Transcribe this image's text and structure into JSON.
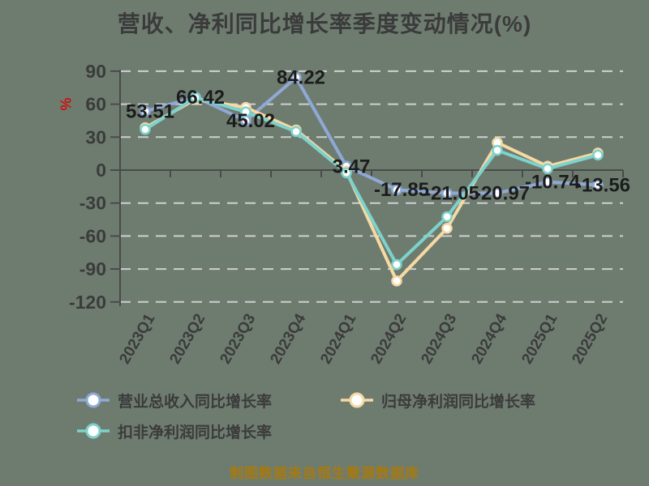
{
  "page": {
    "background": "#6e7c70"
  },
  "chart_data": {
    "type": "line",
    "title": "营收、净利同比增长率季度变动情况(%)",
    "unit_label": "%",
    "categories": [
      "2023Q1",
      "2023Q2",
      "2023Q3",
      "2023Q4",
      "2024Q1",
      "2024Q2",
      "2024Q3",
      "2024Q4",
      "2025Q1",
      "2025Q2"
    ],
    "yticks": [
      90,
      60,
      30,
      0,
      -30,
      -60,
      -90,
      -120
    ],
    "ylim": [
      -120,
      90
    ],
    "grid": "horizontal-dashed",
    "legend_position": "bottom-left",
    "series": [
      {
        "name": "营业总收入同比增长率",
        "color": "#8fa9d6",
        "labeled": true,
        "values": [
          53.51,
          66.42,
          45.02,
          84.22,
          3.47,
          -17.85,
          -21.05,
          -20.97,
          -10.74,
          -13.56
        ]
      },
      {
        "name": "归母净利润同比增长率",
        "color": "#f6d9a3",
        "labeled": false,
        "values": [
          38.5,
          64.5,
          57,
          36.5,
          -1,
          -100.9,
          -53,
          25,
          3.5,
          15.5
        ]
      },
      {
        "name": "扣非净利润同比增长率",
        "color": "#7dd2cb",
        "labeled": false,
        "values": [
          37,
          66,
          53,
          35,
          -2.5,
          -86,
          -42.5,
          18,
          1.3,
          13.7
        ]
      }
    ],
    "colors": {
      "axis": "#4a4a4a",
      "grid": "#d9d9d9",
      "tick_text": "#3b3b3b",
      "data_label": "#1c1c1c",
      "unit": "#cc1111"
    }
  },
  "footer": {
    "source_note": "制图数据来自恒生聚源数据库",
    "color": "#a8790c"
  }
}
